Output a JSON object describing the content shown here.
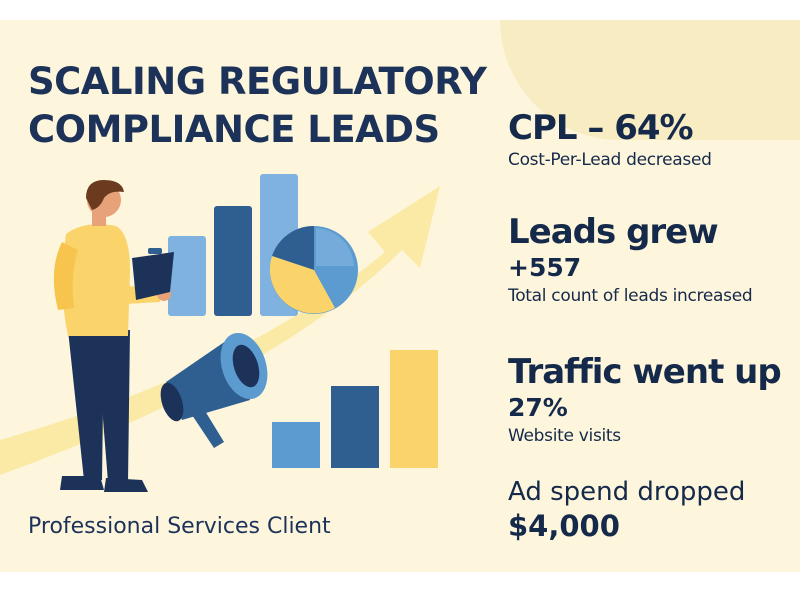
{
  "title": {
    "line1": "SCALING REGULATORY",
    "line2": "COMPLIANCE LEADS"
  },
  "client_label": "Professional Services Client",
  "stats": {
    "cpl": {
      "headline": "CPL – 64%",
      "caption": "Cost-Per-Lead decreased"
    },
    "leads": {
      "headline": "Leads grew",
      "value": "+557",
      "caption": "Total count of leads increased"
    },
    "traffic": {
      "headline": "Traffic went up",
      "value": "27%",
      "caption": "Website visits"
    },
    "adspend": {
      "headline": "Ad spend dropped",
      "value": "$4,000"
    }
  },
  "illustration": {
    "icons": [
      "person-icon",
      "clipboard-icon",
      "bar-chart-icon",
      "pie-chart-icon",
      "megaphone-icon",
      "growth-arrow-icon"
    ]
  },
  "colors": {
    "background": "#fdf6dc",
    "navy": "#1c3259",
    "dark_blue": "#2f5f91",
    "mid_blue": "#5b9bd0",
    "light_blue": "#7fb2de",
    "yellow": "#fbd36b",
    "pale_yellow": "#fbe9a6"
  }
}
